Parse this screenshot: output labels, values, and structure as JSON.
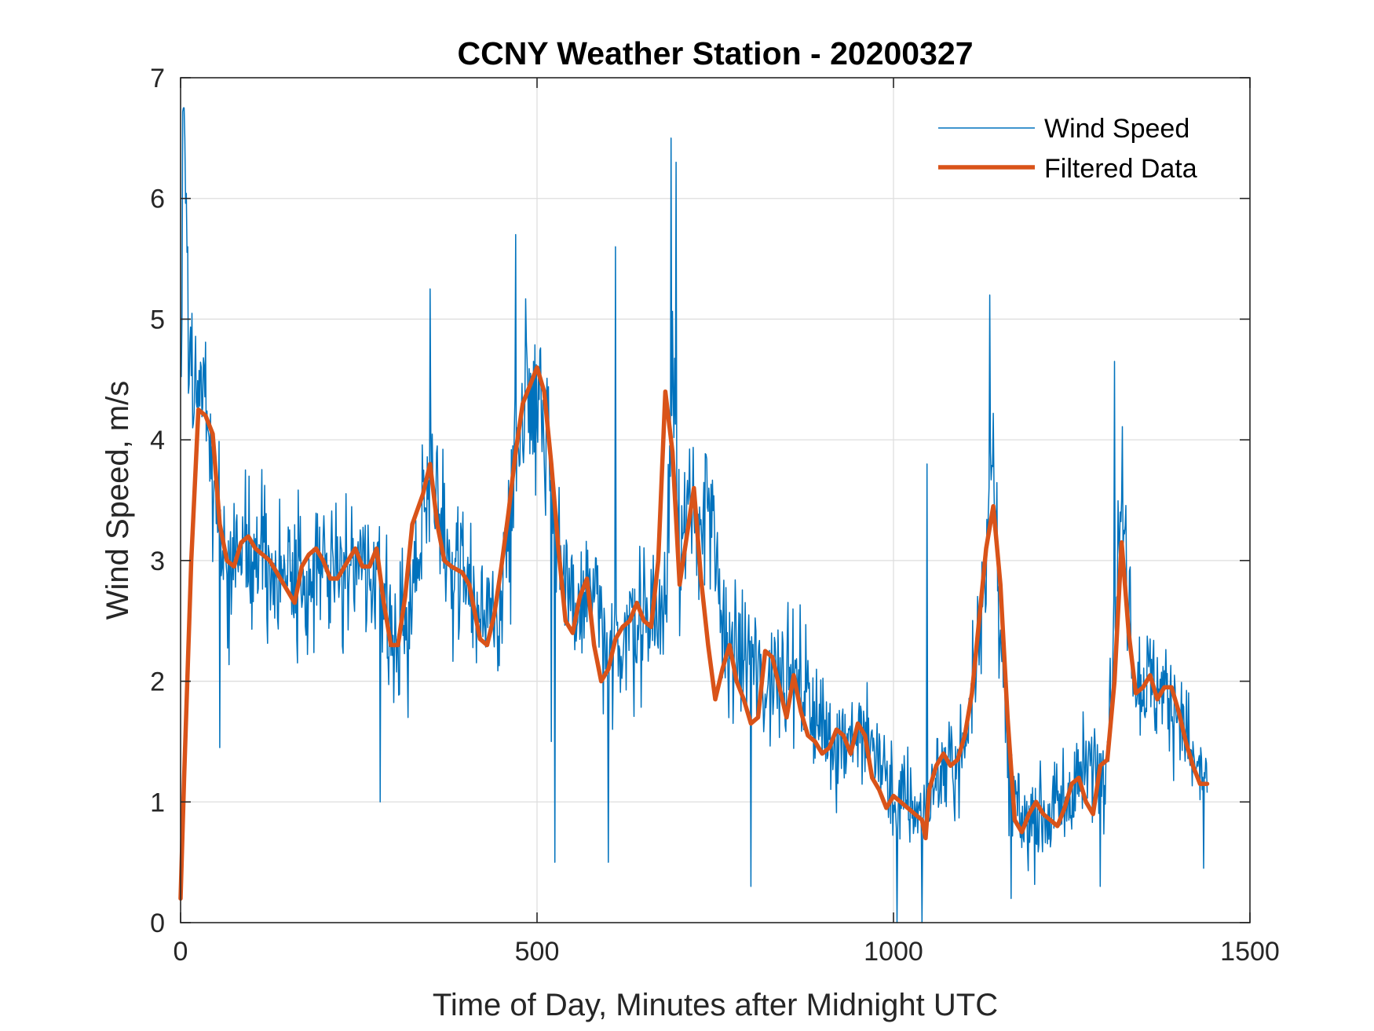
{
  "chart_data": {
    "type": "line",
    "title": "CCNY Weather Station - 20200327",
    "xlabel": "Time of Day, Minutes after Midnight UTC",
    "ylabel": "Wind Speed, m/s",
    "xlim": [
      0,
      1500
    ],
    "ylim": [
      0,
      7
    ],
    "xticks": [
      0,
      500,
      1000,
      1500
    ],
    "yticks": [
      0,
      1,
      2,
      3,
      4,
      5,
      6,
      7
    ],
    "grid": true,
    "legend_position": "top-right",
    "raw_noise_seed": 20200327,
    "raw_sample_count": 1440,
    "series": [
      {
        "name": "Wind Speed",
        "color": "#0072BD",
        "line_width": "thin",
        "kind": "raw",
        "x": [
          1,
          5,
          10,
          20,
          30,
          40,
          50,
          60,
          70,
          80,
          90,
          100,
          120,
          140,
          160,
          180,
          200,
          220,
          240,
          260,
          280,
          300,
          320,
          340,
          350,
          360,
          380,
          400,
          420,
          440,
          460,
          480,
          500,
          520,
          540,
          560,
          580,
          600,
          620,
          640,
          660,
          680,
          690,
          700,
          720,
          740,
          760,
          780,
          800,
          820,
          840,
          860,
          880,
          900,
          920,
          940,
          960,
          980,
          1000,
          1020,
          1040,
          1060,
          1080,
          1100,
          1120,
          1140,
          1160,
          1180,
          1200,
          1220,
          1240,
          1260,
          1280,
          1300,
          1320,
          1340,
          1360,
          1380,
          1400,
          1420,
          1440
        ],
        "y": [
          4.4,
          6.7,
          4.6,
          4.2,
          4.4,
          4.0,
          3.4,
          3.0,
          2.9,
          3.1,
          3.2,
          3.1,
          3.0,
          2.9,
          2.8,
          2.9,
          3.0,
          2.8,
          3.0,
          2.9,
          3.0,
          2.4,
          2.5,
          3.3,
          3.8,
          3.5,
          2.9,
          2.9,
          2.5,
          2.4,
          3.2,
          4.4,
          4.5,
          3.8,
          2.6,
          2.6,
          2.8,
          2.0,
          2.4,
          2.5,
          2.6,
          2.5,
          4.8,
          3.2,
          3.3,
          3.5,
          2.4,
          2.2,
          2.2,
          1.9,
          2.2,
          2.0,
          1.9,
          1.6,
          1.5,
          1.6,
          1.5,
          1.4,
          1.0,
          1.0,
          0.9,
          1.2,
          1.3,
          1.4,
          2.5,
          3.8,
          1.2,
          0.8,
          0.9,
          0.9,
          1.0,
          1.2,
          1.3,
          1.5,
          3.5,
          2.0,
          2.0,
          1.9,
          1.8,
          1.3,
          1.2
        ],
        "spike_peaks": [
          [
            3,
            6.72
          ],
          [
            10,
            5.6
          ],
          [
            470,
            5.7
          ],
          [
            610,
            5.6
          ],
          [
            688,
            6.5
          ],
          [
            695,
            6.3
          ],
          [
            350,
            5.25
          ],
          [
            1135,
            5.2
          ],
          [
            1310,
            4.65
          ],
          [
            1047,
            3.8
          ]
        ],
        "dip_troughs": [
          [
            55,
            1.45
          ],
          [
            280,
            1.0
          ],
          [
            520,
            1.5
          ],
          [
            525,
            0.5
          ],
          [
            600,
            0.5
          ],
          [
            800,
            0.3
          ],
          [
            1005,
            0.0
          ],
          [
            1040,
            0.0
          ],
          [
            1165,
            0.2
          ],
          [
            1290,
            0.3
          ],
          [
            1435,
            0.45
          ]
        ]
      },
      {
        "name": "Filtered Data",
        "color": "#D95319",
        "line_width": "thick",
        "kind": "filtered",
        "x": [
          0,
          5,
          15,
          25,
          35,
          45,
          55,
          65,
          75,
          85,
          95,
          105,
          115,
          125,
          135,
          145,
          160,
          170,
          180,
          190,
          200,
          210,
          220,
          230,
          245,
          255,
          265,
          275,
          285,
          295,
          305,
          315,
          325,
          340,
          350,
          360,
          370,
          380,
          395,
          405,
          420,
          430,
          440,
          450,
          460,
          470,
          480,
          490,
          500,
          510,
          520,
          530,
          540,
          550,
          560,
          570,
          580,
          590,
          600,
          610,
          620,
          630,
          640,
          650,
          660,
          670,
          680,
          690,
          700,
          710,
          720,
          730,
          740,
          750,
          760,
          770,
          780,
          790,
          800,
          810,
          820,
          830,
          840,
          850,
          860,
          870,
          880,
          890,
          900,
          910,
          920,
          930,
          940,
          950,
          960,
          970,
          980,
          990,
          1000,
          1010,
          1020,
          1030,
          1040,
          1045,
          1050,
          1060,
          1070,
          1080,
          1090,
          1100,
          1110,
          1120,
          1130,
          1140,
          1150,
          1160,
          1170,
          1180,
          1190,
          1200,
          1210,
          1220,
          1230,
          1240,
          1250,
          1260,
          1270,
          1280,
          1290,
          1300,
          1310,
          1320,
          1330,
          1340,
          1350,
          1360,
          1370,
          1380,
          1390,
          1400,
          1410,
          1420,
          1430,
          1440
        ],
        "y": [
          0.2,
          1.2,
          3.0,
          4.25,
          4.2,
          4.05,
          3.3,
          3.0,
          2.95,
          3.15,
          3.2,
          3.1,
          3.05,
          3.0,
          2.9,
          2.8,
          2.65,
          2.95,
          3.05,
          3.1,
          3.0,
          2.85,
          2.85,
          2.95,
          3.1,
          2.95,
          2.95,
          3.1,
          2.65,
          2.3,
          2.3,
          2.7,
          3.3,
          3.55,
          3.8,
          3.3,
          3.0,
          2.95,
          2.9,
          2.8,
          2.35,
          2.3,
          2.55,
          2.95,
          3.4,
          3.9,
          4.3,
          4.45,
          4.6,
          4.4,
          3.8,
          3.1,
          2.5,
          2.4,
          2.7,
          2.85,
          2.3,
          2.0,
          2.1,
          2.35,
          2.45,
          2.5,
          2.65,
          2.5,
          2.45,
          3.0,
          4.4,
          3.9,
          2.8,
          3.2,
          3.6,
          2.85,
          2.3,
          1.85,
          2.1,
          2.3,
          2.0,
          1.85,
          1.65,
          1.7,
          2.25,
          2.2,
          1.95,
          1.7,
          2.05,
          1.75,
          1.55,
          1.5,
          1.4,
          1.45,
          1.6,
          1.55,
          1.4,
          1.65,
          1.55,
          1.2,
          1.1,
          0.95,
          1.05,
          1.0,
          0.95,
          0.9,
          0.85,
          0.7,
          1.1,
          1.3,
          1.4,
          1.3,
          1.35,
          1.55,
          1.9,
          2.5,
          3.1,
          3.45,
          2.8,
          1.7,
          0.85,
          0.75,
          0.9,
          1.0,
          0.9,
          0.85,
          0.8,
          0.95,
          1.15,
          1.2,
          1.0,
          0.9,
          1.3,
          1.35,
          2.0,
          3.15,
          2.4,
          1.9,
          1.95,
          2.05,
          1.85,
          1.95,
          1.95,
          1.75,
          1.5,
          1.3,
          1.15,
          1.15
        ]
      }
    ]
  }
}
